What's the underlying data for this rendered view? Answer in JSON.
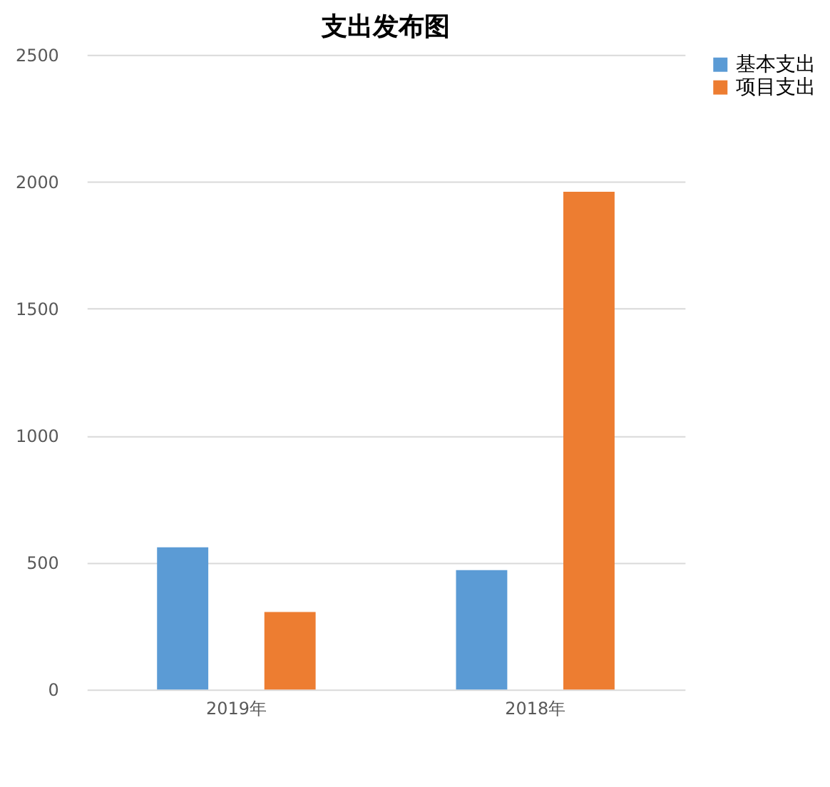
{
  "chart_data": {
    "type": "bar",
    "title": "支出发布图",
    "categories": [
      "2019年",
      "2018年"
    ],
    "series": [
      {
        "name": "基本支出",
        "color": "#5b9bd5",
        "values": [
          560,
          470
        ]
      },
      {
        "name": "项目支出",
        "color": "#ed7d31",
        "values": [
          305,
          1960
        ]
      }
    ],
    "ylim": [
      0,
      2500
    ],
    "yticks": [
      0,
      500,
      1000,
      1500,
      2000,
      2500
    ],
    "grid": "y",
    "legend": "right"
  }
}
